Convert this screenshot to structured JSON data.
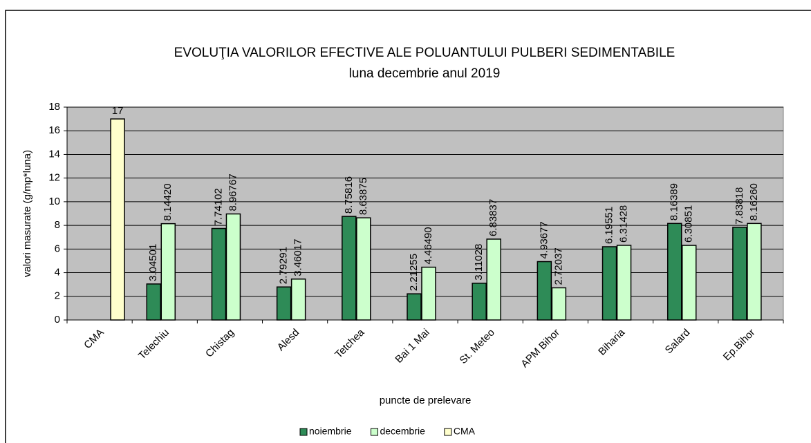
{
  "chart_data": {
    "type": "bar",
    "title": "EVOLUŢIA VALORILOR EFECTIVE ALE POLUANTULUI PULBERI SEDIMENTABILE",
    "subtitle": "luna  decembrie anul 2019",
    "x_label": "puncte de prelevare",
    "y_label": "valori masurate (g/mp*luna)",
    "categories": [
      "CMA",
      "Telechiu",
      "Chistag",
      "Alesd",
      "Tetchea",
      "Bai 1 Mai",
      "St. Meteo",
      "APM Bihor",
      "Biharia",
      "Salard",
      "Ep.Bihor"
    ],
    "series": [
      {
        "name": "noiembrie",
        "color": "#2e8b57",
        "values": [
          null,
          3.04501,
          7.74102,
          2.79291,
          8.75816,
          2.21255,
          3.11028,
          4.93677,
          6.19551,
          8.16389,
          7.83818
        ],
        "value_labels": [
          null,
          "3.04501",
          "7.74102",
          "2.79291",
          "8.75816",
          "2.21255",
          "3.11028",
          "4.93677",
          "6.19551",
          "8.16389",
          "7.83818"
        ]
      },
      {
        "name": "decembrie",
        "color": "#ccffcc",
        "values": [
          null,
          8.1442,
          8.96767,
          3.46017,
          8.63875,
          4.4649,
          6.83837,
          2.72037,
          6.31428,
          6.30851,
          8.1626
        ],
        "value_labels": [
          null,
          "8.14420",
          "8.96767",
          "3.46017",
          "8.63875",
          "4.46490",
          "6.83837",
          "2.72037",
          "6.31428",
          "6.30851",
          "8.16260"
        ]
      },
      {
        "name": "CMA",
        "color": "#ffffcc",
        "values": [
          17,
          null,
          null,
          null,
          null,
          null,
          null,
          null,
          null,
          null,
          null
        ],
        "value_labels": [
          "17",
          null,
          null,
          null,
          null,
          null,
          null,
          null,
          null,
          null,
          null
        ]
      }
    ],
    "ylim": [
      0,
      18
    ],
    "yticks": [
      0,
      2,
      4,
      6,
      8,
      10,
      12,
      14,
      16,
      18
    ],
    "grid": true,
    "plot_background": "#c0c0c0",
    "legend": "bottom"
  }
}
